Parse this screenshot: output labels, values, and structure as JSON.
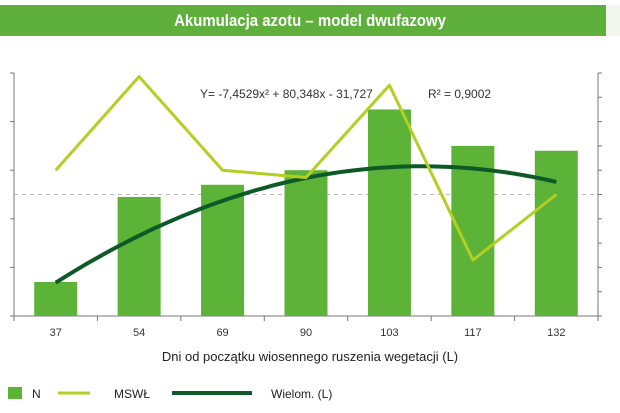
{
  "title": "Akumulacja azotu – model dwufazowy",
  "colors": {
    "title_bar": "#5faf3d",
    "bars": "#5cb338",
    "mswl": "#b3cf23",
    "wielom": "#0d5a27"
  },
  "chart_data": {
    "type": "bar",
    "categories": [
      "37",
      "54",
      "69",
      "90",
      "103",
      "117",
      "132"
    ],
    "xlabel": "Dni od początku wiosennego ruszenia wegetacji (L)",
    "equation": "Y= -7,4529x² + 80,348x - 31,727",
    "r_squared": "R² = 0,9002",
    "ylim": [
      0,
      5
    ],
    "y2lim": [
      -5,
      5
    ],
    "grid": false,
    "reference_line": {
      "axis": "y2",
      "value": 0,
      "style": "dashed"
    },
    "series": [
      {
        "name": "N",
        "type": "bar",
        "axis": "y",
        "values": [
          0.7,
          2.45,
          2.7,
          3.0,
          4.25,
          3.5,
          3.4
        ]
      },
      {
        "name": "MSWŁ",
        "type": "line",
        "axis": "y2",
        "values": [
          1.0,
          4.85,
          1.0,
          0.7,
          4.5,
          -2.7,
          0.0
        ]
      },
      {
        "name": "Wielom. (L)",
        "type": "line",
        "axis": "y",
        "curve": "polynomial",
        "coefficients": [
          -7.4529,
          80.348,
          -31.727
        ]
      }
    ]
  },
  "legend": {
    "items": [
      {
        "label": "N",
        "symbol": "square"
      },
      {
        "label": "MSWŁ",
        "symbol": "line"
      },
      {
        "label": "Wielom. (L)",
        "symbol": "line"
      }
    ]
  }
}
